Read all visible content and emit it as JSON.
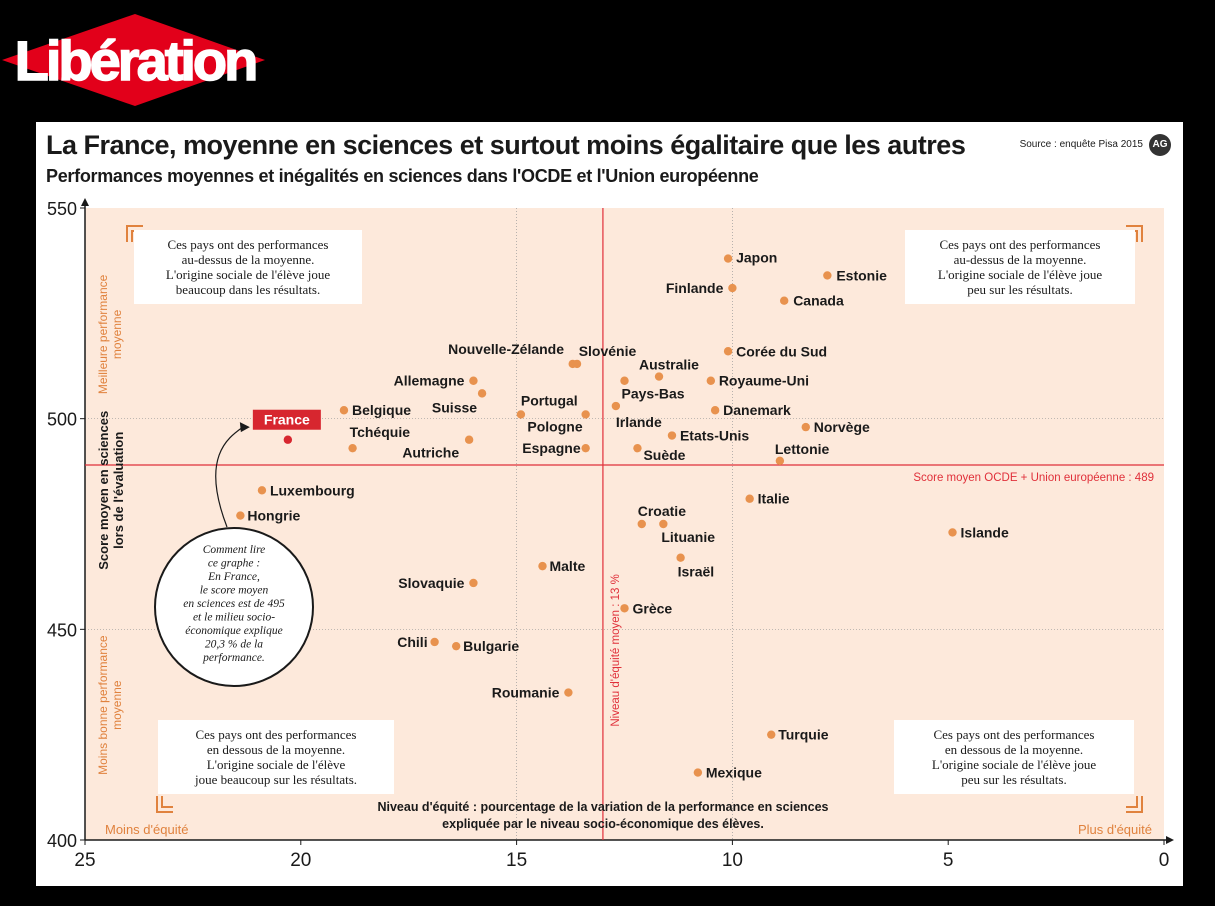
{
  "logo": {
    "text": "Libération",
    "color": "#e2001a"
  },
  "header": {
    "title": "La France, moyenne en sciences et surtout moins égalitaire que les autres",
    "subtitle": "Performances moyennes et inégalités en sciences dans l'OCDE et l'Union européenne",
    "source": "Source : enquête Pisa 2015",
    "badge": "AG"
  },
  "colors": {
    "background": "#fde9db",
    "point": "#e8924e",
    "reference": "#e0303a",
    "france": "#d7262f",
    "orange_text": "#e0823e"
  },
  "chart_data": {
    "type": "scatter",
    "xlim": [
      25,
      0
    ],
    "ylim": [
      400,
      550
    ],
    "xticks": [
      25,
      20,
      15,
      10,
      5,
      0
    ],
    "yticks": [
      550,
      500,
      450,
      400
    ],
    "ylabel": "Score moyen en sciences lors de l'évaluation",
    "xlabel": "Niveau d'équité : pourcentage de la variation de la performance en sciences expliquée par le niveau socio-économique des élèves.",
    "x_left_label": "Moins d'équité",
    "x_right_label": "Plus d'équité",
    "y_top_label": "Meilleure performance moyenne",
    "y_bottom_label": "Moins bonne performance moyenne",
    "hline": {
      "value": 489,
      "label": "Score moyen OCDE + Union européenne : 489"
    },
    "vline": {
      "value": 13,
      "label": "Niveau d'équité moyen : 13 %"
    },
    "grid": {
      "x": [
        15,
        10
      ],
      "y": [
        500,
        450
      ]
    },
    "points": [
      {
        "name": "France",
        "x": 20.3,
        "y": 495,
        "highlight": true
      },
      {
        "name": "Japon",
        "x": 10.1,
        "y": 538
      },
      {
        "name": "Estonie",
        "x": 7.8,
        "y": 534
      },
      {
        "name": "Finlande",
        "x": 10.0,
        "y": 531
      },
      {
        "name": "Canada",
        "x": 8.8,
        "y": 528
      },
      {
        "name": "Corée du Sud",
        "x": 10.1,
        "y": 516
      },
      {
        "name": "Slovénie",
        "x": 13.7,
        "y": 513
      },
      {
        "name": "Nouvelle-Zélande",
        "x": 13.6,
        "y": 513
      },
      {
        "name": "Australie",
        "x": 11.7,
        "y": 510
      },
      {
        "name": "Royaume-Uni",
        "x": 10.5,
        "y": 509
      },
      {
        "name": "Allemagne",
        "x": 16.0,
        "y": 509
      },
      {
        "name": "Pays-Bas",
        "x": 12.5,
        "y": 509
      },
      {
        "name": "Suisse",
        "x": 15.8,
        "y": 506
      },
      {
        "name": "Irlande",
        "x": 12.7,
        "y": 503
      },
      {
        "name": "Danemark",
        "x": 10.4,
        "y": 502
      },
      {
        "name": "Belgique",
        "x": 19.0,
        "y": 502
      },
      {
        "name": "Portugal",
        "x": 14.9,
        "y": 501
      },
      {
        "name": "Pologne",
        "x": 13.4,
        "y": 501
      },
      {
        "name": "Norvège",
        "x": 8.3,
        "y": 498
      },
      {
        "name": "Etats-Unis",
        "x": 11.4,
        "y": 496
      },
      {
        "name": "Autriche",
        "x": 16.1,
        "y": 495
      },
      {
        "name": "Tchéquie",
        "x": 18.8,
        "y": 493
      },
      {
        "name": "Espagne",
        "x": 13.4,
        "y": 493
      },
      {
        "name": "Suède",
        "x": 12.2,
        "y": 493
      },
      {
        "name": "Lettonie",
        "x": 8.9,
        "y": 490
      },
      {
        "name": "Luxembourg",
        "x": 20.9,
        "y": 483
      },
      {
        "name": "Italie",
        "x": 9.6,
        "y": 481
      },
      {
        "name": "Hongrie",
        "x": 21.4,
        "y": 477
      },
      {
        "name": "Croatie",
        "x": 12.1,
        "y": 475
      },
      {
        "name": "Lituanie",
        "x": 11.6,
        "y": 475
      },
      {
        "name": "Islande",
        "x": 4.9,
        "y": 473
      },
      {
        "name": "Israël",
        "x": 11.2,
        "y": 467
      },
      {
        "name": "Malte",
        "x": 14.4,
        "y": 465
      },
      {
        "name": "Slovaquie",
        "x": 16.0,
        "y": 461
      },
      {
        "name": "Grèce",
        "x": 12.5,
        "y": 455
      },
      {
        "name": "Chili",
        "x": 16.9,
        "y": 447
      },
      {
        "name": "Bulgarie",
        "x": 16.4,
        "y": 446
      },
      {
        "name": "Roumanie",
        "x": 13.8,
        "y": 435
      },
      {
        "name": "Turquie",
        "x": 9.1,
        "y": 425
      },
      {
        "name": "Mexique",
        "x": 10.8,
        "y": 416
      }
    ],
    "annotations": {
      "top_left": [
        "Ces pays ont des performances",
        "au-dessus de la moyenne.",
        "L'origine sociale de l'élève joue",
        "beaucoup dans les résultats."
      ],
      "top_right": [
        "Ces pays ont des performances",
        "au-dessus de la moyenne.",
        "L'origine sociale de l'élève joue",
        "peu sur les résultats."
      ],
      "bottom_left": [
        "Ces pays ont des performances",
        "en dessous de la moyenne.",
        "L'origine sociale de l'élève",
        "joue beaucoup sur les résultats."
      ],
      "bottom_right": [
        "Ces pays ont des performances",
        "en dessous de la moyenne.",
        "L'origine sociale de l'élève joue",
        "peu sur les résultats."
      ],
      "howto": [
        "Comment lire",
        "ce graphe :",
        "En France,",
        "le score moyen",
        "en sciences est de 495",
        "et le milieu socio-",
        "économique explique",
        "20,3 % de la",
        "performance."
      ]
    }
  }
}
